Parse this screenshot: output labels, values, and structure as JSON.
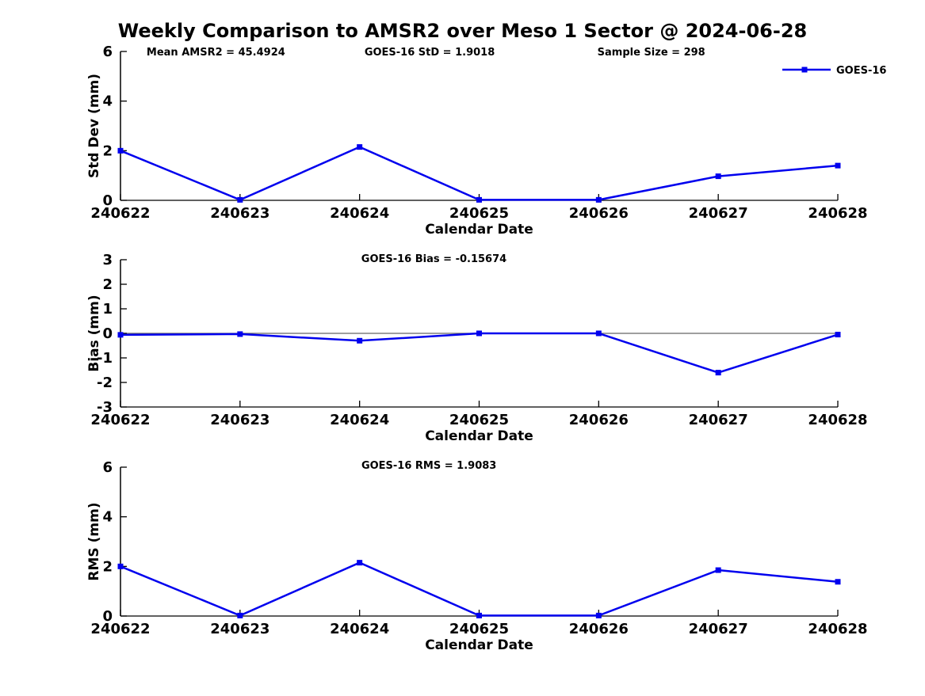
{
  "figure": {
    "title": "Weekly Comparison to AMSR2 over Meso 1 Sector @ 2024-06-28"
  },
  "colors": {
    "series_blue": "#0000EE",
    "axis_black": "#000000",
    "zero_line_gray": "#666666",
    "background": "#ffffff"
  },
  "legend": {
    "label": "GOES-16",
    "marker": "filled-square"
  },
  "chart_data": [
    {
      "type": "line",
      "name": "std-dev",
      "annotations": [
        "Mean AMSR2 = 45.4924",
        "GOES-16 StD = 1.9018",
        "Sample Size = 298"
      ],
      "categories": [
        "240622",
        "240623",
        "240624",
        "240625",
        "240626",
        "240627",
        "240628"
      ],
      "series": [
        {
          "name": "GOES-16",
          "values": [
            2.0,
            0.02,
            2.15,
            0.02,
            0.02,
            0.97,
            1.4
          ]
        }
      ],
      "xlabel": "Calendar Date",
      "ylabel": "Std Dev (mm)",
      "ylim": [
        0,
        6
      ],
      "yticks": [
        0,
        2,
        4,
        6
      ],
      "grid": false,
      "zero_line": false,
      "legend_entries": [
        "GOES-16"
      ],
      "legend_position": "top-right"
    },
    {
      "type": "line",
      "name": "bias",
      "annotations": [
        "GOES-16 Bias  = -0.15674"
      ],
      "categories": [
        "240622",
        "240623",
        "240624",
        "240625",
        "240626",
        "240627",
        "240628"
      ],
      "series": [
        {
          "name": "GOES-16",
          "values": [
            -0.06,
            -0.03,
            -0.3,
            0.0,
            0.0,
            -1.6,
            -0.05
          ]
        }
      ],
      "xlabel": "Calendar Date",
      "ylabel": "Bias (mm)",
      "ylim": [
        -3,
        3
      ],
      "yticks": [
        -3,
        -2,
        -1,
        0,
        1,
        2,
        3
      ],
      "grid": false,
      "zero_line": true,
      "legend_entries": [],
      "legend_position": null
    },
    {
      "type": "line",
      "name": "rms",
      "annotations": [
        "GOES-16 RMS = 1.9083"
      ],
      "categories": [
        "240622",
        "240623",
        "240624",
        "240625",
        "240626",
        "240627",
        "240628"
      ],
      "series": [
        {
          "name": "GOES-16",
          "values": [
            2.0,
            0.02,
            2.15,
            0.02,
            0.02,
            1.85,
            1.38
          ]
        }
      ],
      "xlabel": "Calendar Date",
      "ylabel": "RMS (mm)",
      "ylim": [
        0,
        6
      ],
      "yticks": [
        0,
        2,
        4,
        6
      ],
      "grid": false,
      "zero_line": false,
      "legend_entries": [],
      "legend_position": null
    }
  ]
}
